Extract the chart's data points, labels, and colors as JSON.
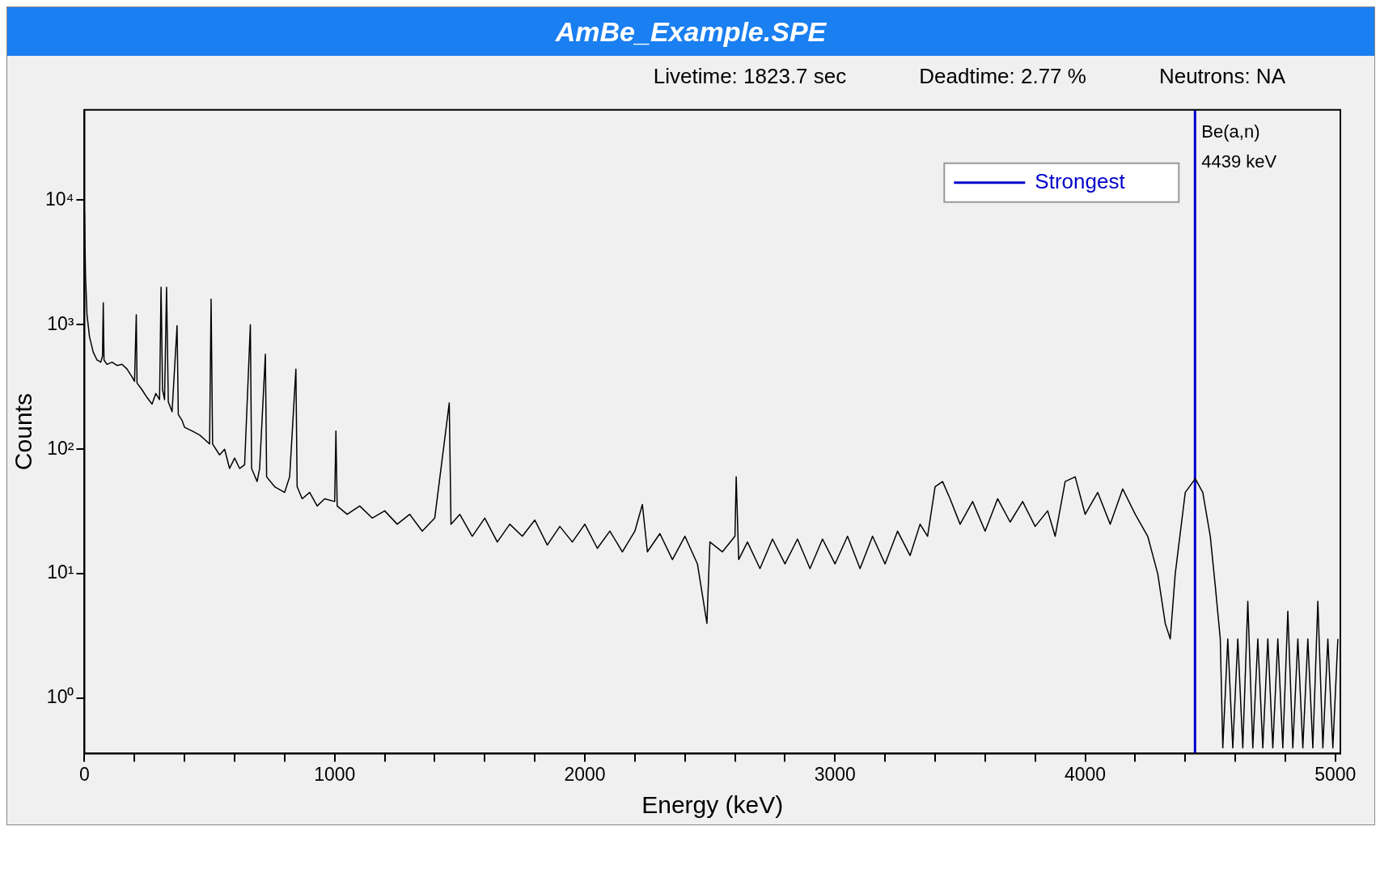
{
  "chart_data": {
    "type": "line",
    "title": "AmBe_Example.SPE",
    "xlabel": "Energy (keV)",
    "ylabel": "Counts",
    "annotations": [
      "Livetime: 1823.7 sec",
      "Deadtime: 2.77 %",
      "Neutrons: NA",
      {
        "text": "Be(a,n)",
        "x": 4439,
        "y": 35000
      },
      {
        "text": "4439 keV",
        "x": 4439,
        "y": 20000
      }
    ],
    "log": "y",
    "grid": false,
    "legend": "top right",
    "marker": "none",
    "line_style": "solid",
    "xlim": [
      0,
      5020
    ],
    "xticks": [
      0,
      {
        "value": 200,
        "label": null
      },
      {
        "value": 400,
        "label": null
      },
      {
        "value": 600,
        "label": null
      },
      {
        "value": 800,
        "label": null
      },
      1000,
      {
        "value": 1200,
        "label": null
      },
      {
        "value": 1400,
        "label": null
      },
      {
        "value": 1600,
        "label": null
      },
      {
        "value": 1800,
        "label": null
      },
      2000,
      {
        "value": 2200,
        "label": null
      },
      {
        "value": 2400,
        "label": null
      },
      {
        "value": 2600,
        "label": null
      },
      {
        "value": 2800,
        "label": null
      },
      3000,
      {
        "value": 3200,
        "label": null
      },
      {
        "value": 3400,
        "label": null
      },
      {
        "value": 3600,
        "label": null
      },
      {
        "value": 3800,
        "label": null
      },
      4000,
      {
        "value": 4200,
        "label": null
      },
      {
        "value": 4400,
        "label": null
      },
      {
        "value": 4600,
        "label": null
      },
      {
        "value": 4800,
        "label": null
      },
      5000
    ],
    "ylim": [
      0.36,
      53000
    ],
    "yticks": [
      {
        "value": 1,
        "label": "10⁰"
      },
      {
        "value": 10,
        "label": "10¹"
      },
      {
        "value": 100,
        "label": "10²"
      },
      {
        "value": 1000,
        "label": "10³"
      },
      {
        "value": 10000,
        "label": "10⁴"
      }
    ],
    "series": [
      {
        "color": "#000000",
        "x": [
          0,
          4,
          10,
          20,
          35,
          50,
          65,
          72,
          75,
          78,
          90,
          110,
          130,
          150,
          170,
          190,
          200,
          207,
          210,
          230,
          250,
          270,
          285,
          300,
          306,
          312,
          320,
          328,
          335,
          350,
          370,
          375,
          390,
          400,
          430,
          460,
          480,
          500,
          506,
          512,
          540,
          560,
          580,
          600,
          620,
          640,
          663,
          668,
          690,
          700,
          723,
          728,
          760,
          800,
          820,
          845,
          850,
          870,
          900,
          930,
          960,
          1000,
          1005,
          1010,
          1050,
          1100,
          1150,
          1200,
          1250,
          1300,
          1350,
          1400,
          1458,
          1465,
          1500,
          1550,
          1600,
          1650,
          1700,
          1750,
          1800,
          1850,
          1900,
          1950,
          2000,
          2050,
          2100,
          2150,
          2200,
          2230,
          2250,
          2300,
          2350,
          2400,
          2450,
          2488,
          2500,
          2550,
          2600,
          2605,
          2615,
          2650,
          2700,
          2750,
          2800,
          2850,
          2900,
          2950,
          3000,
          3050,
          3100,
          3150,
          3200,
          3250,
          3300,
          3340,
          3370,
          3400,
          3430,
          3460,
          3500,
          3550,
          3600,
          3650,
          3700,
          3750,
          3800,
          3850,
          3880,
          3920,
          3960,
          4000,
          4050,
          4100,
          4150,
          4200,
          4250,
          4290,
          4320,
          4340,
          4360,
          4400,
          4440,
          4470,
          4500,
          4520,
          4540,
          4550,
          4570,
          4590,
          4610,
          4630,
          4650,
          4670,
          4690,
          4710,
          4730,
          4750,
          4770,
          4790,
          4810,
          4830,
          4850,
          4870,
          4890,
          4910,
          4930,
          4950,
          4970,
          4990,
          5010
        ],
        "values": [
          8000,
          2500,
          1200,
          800,
          600,
          520,
          500,
          560,
          1500,
          520,
          480,
          500,
          470,
          480,
          440,
          380,
          350,
          1200,
          340,
          300,
          260,
          230,
          280,
          250,
          2000,
          300,
          250,
          2000,
          240,
          200,
          980,
          190,
          170,
          150,
          140,
          130,
          120,
          110,
          1600,
          110,
          90,
          100,
          70,
          85,
          70,
          75,
          1000,
          70,
          55,
          70,
          580,
          60,
          50,
          45,
          60,
          440,
          50,
          40,
          45,
          35,
          40,
          38,
          140,
          35,
          30,
          35,
          28,
          32,
          25,
          30,
          22,
          28,
          235,
          25,
          30,
          20,
          28,
          18,
          25,
          20,
          27,
          17,
          24,
          18,
          25,
          16,
          22,
          15,
          22,
          36,
          15,
          21,
          13,
          20,
          12,
          4,
          18,
          15,
          20,
          60,
          13,
          18,
          11,
          19,
          12,
          19,
          11,
          19,
          12,
          20,
          11,
          20,
          12,
          22,
          14,
          25,
          20,
          50,
          55,
          40,
          25,
          38,
          22,
          40,
          26,
          38,
          24,
          32,
          20,
          55,
          60,
          30,
          45,
          25,
          48,
          30,
          20,
          10,
          4,
          3,
          10,
          45,
          58,
          45,
          20,
          8,
          3,
          0.4,
          3,
          0.4,
          3,
          0.4,
          6,
          0.4,
          3,
          0.4,
          3,
          0.4,
          3,
          0.4,
          5,
          0.4,
          3,
          0.4,
          3,
          0.4,
          6,
          0.4,
          3,
          0.4,
          3
        ]
      },
      {
        "name": "Strongest",
        "color": "#0000cc",
        "x": [
          4439,
          4439
        ],
        "values": [
          0.36,
          53000
        ]
      }
    ]
  }
}
